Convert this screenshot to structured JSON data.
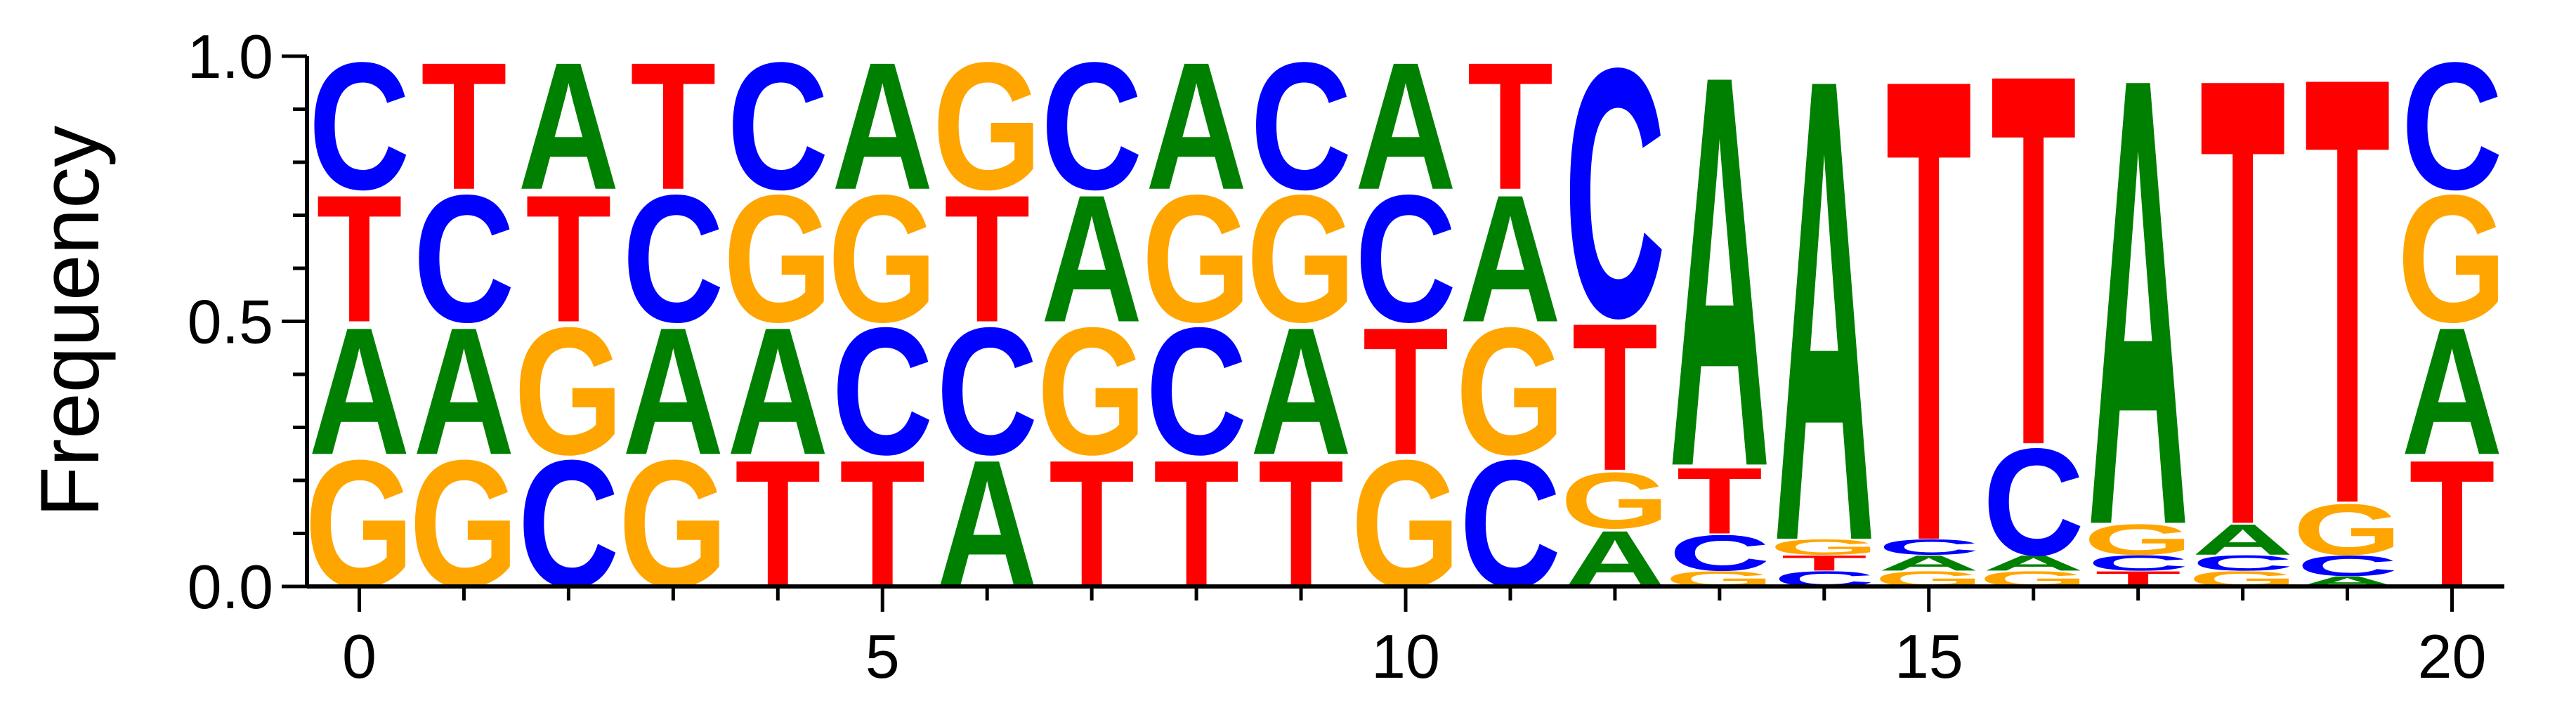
{
  "chart_data": {
    "type": "sequence-logo",
    "ylabel": "Frequency",
    "xlabel": "",
    "xlim": [
      -0.5,
      20.5
    ],
    "ylim": [
      0,
      1
    ],
    "x_ticks": [
      0,
      5,
      10,
      15,
      20
    ],
    "y_ticks": [
      "0.0",
      "0.5",
      "1.0"
    ],
    "colors": {
      "A": "#008000",
      "C": "#0000ff",
      "G": "#ffa500",
      "T": "#ff0000"
    },
    "positions": [
      {
        "pos": 0,
        "stack": [
          {
            "base": "G",
            "freq": 0.25
          },
          {
            "base": "A",
            "freq": 0.25
          },
          {
            "base": "T",
            "freq": 0.25
          },
          {
            "base": "C",
            "freq": 0.25
          }
        ]
      },
      {
        "pos": 1,
        "stack": [
          {
            "base": "G",
            "freq": 0.25
          },
          {
            "base": "A",
            "freq": 0.25
          },
          {
            "base": "C",
            "freq": 0.25
          },
          {
            "base": "T",
            "freq": 0.25
          }
        ]
      },
      {
        "pos": 2,
        "stack": [
          {
            "base": "C",
            "freq": 0.25
          },
          {
            "base": "G",
            "freq": 0.25
          },
          {
            "base": "T",
            "freq": 0.25
          },
          {
            "base": "A",
            "freq": 0.25
          }
        ]
      },
      {
        "pos": 3,
        "stack": [
          {
            "base": "G",
            "freq": 0.25
          },
          {
            "base": "A",
            "freq": 0.25
          },
          {
            "base": "C",
            "freq": 0.25
          },
          {
            "base": "T",
            "freq": 0.25
          }
        ]
      },
      {
        "pos": 4,
        "stack": [
          {
            "base": "T",
            "freq": 0.25
          },
          {
            "base": "A",
            "freq": 0.25
          },
          {
            "base": "G",
            "freq": 0.25
          },
          {
            "base": "C",
            "freq": 0.25
          }
        ]
      },
      {
        "pos": 5,
        "stack": [
          {
            "base": "T",
            "freq": 0.25
          },
          {
            "base": "C",
            "freq": 0.25
          },
          {
            "base": "G",
            "freq": 0.25
          },
          {
            "base": "A",
            "freq": 0.25
          }
        ]
      },
      {
        "pos": 6,
        "stack": [
          {
            "base": "A",
            "freq": 0.25
          },
          {
            "base": "C",
            "freq": 0.25
          },
          {
            "base": "T",
            "freq": 0.25
          },
          {
            "base": "G",
            "freq": 0.25
          }
        ]
      },
      {
        "pos": 7,
        "stack": [
          {
            "base": "T",
            "freq": 0.25
          },
          {
            "base": "G",
            "freq": 0.25
          },
          {
            "base": "A",
            "freq": 0.25
          },
          {
            "base": "C",
            "freq": 0.25
          }
        ]
      },
      {
        "pos": 8,
        "stack": [
          {
            "base": "T",
            "freq": 0.25
          },
          {
            "base": "C",
            "freq": 0.25
          },
          {
            "base": "G",
            "freq": 0.25
          },
          {
            "base": "A",
            "freq": 0.25
          }
        ]
      },
      {
        "pos": 9,
        "stack": [
          {
            "base": "T",
            "freq": 0.25
          },
          {
            "base": "A",
            "freq": 0.25
          },
          {
            "base": "G",
            "freq": 0.25
          },
          {
            "base": "C",
            "freq": 0.25
          }
        ]
      },
      {
        "pos": 10,
        "stack": [
          {
            "base": "G",
            "freq": 0.25
          },
          {
            "base": "T",
            "freq": 0.25
          },
          {
            "base": "C",
            "freq": 0.25
          },
          {
            "base": "A",
            "freq": 0.25
          }
        ]
      },
      {
        "pos": 11,
        "stack": [
          {
            "base": "C",
            "freq": 0.25
          },
          {
            "base": "G",
            "freq": 0.25
          },
          {
            "base": "A",
            "freq": 0.25
          },
          {
            "base": "T",
            "freq": 0.25
          }
        ]
      },
      {
        "pos": 12,
        "stack": [
          {
            "base": "A",
            "freq": 0.11
          },
          {
            "base": "G",
            "freq": 0.11
          },
          {
            "base": "T",
            "freq": 0.29
          },
          {
            "base": "C",
            "freq": 0.49
          }
        ]
      },
      {
        "pos": 13,
        "stack": [
          {
            "base": "G",
            "freq": 0.03
          },
          {
            "base": "C",
            "freq": 0.07
          },
          {
            "base": "T",
            "freq": 0.13
          },
          {
            "base": "A",
            "freq": 0.77
          }
        ]
      },
      {
        "pos": 14,
        "stack": [
          {
            "base": "C",
            "freq": 0.03
          },
          {
            "base": "T",
            "freq": 0.03
          },
          {
            "base": "G",
            "freq": 0.03
          },
          {
            "base": "A",
            "freq": 0.91
          }
        ]
      },
      {
        "pos": 15,
        "stack": [
          {
            "base": "G",
            "freq": 0.03
          },
          {
            "base": "A",
            "freq": 0.03
          },
          {
            "base": "C",
            "freq": 0.03
          },
          {
            "base": "T",
            "freq": 0.91
          }
        ]
      },
      {
        "pos": 16,
        "stack": [
          {
            "base": "G",
            "freq": 0.03
          },
          {
            "base": "A",
            "freq": 0.03
          },
          {
            "base": "C",
            "freq": 0.21
          },
          {
            "base": "T",
            "freq": 0.73
          }
        ]
      },
      {
        "pos": 17,
        "stack": [
          {
            "base": "T",
            "freq": 0.03
          },
          {
            "base": "C",
            "freq": 0.03
          },
          {
            "base": "G",
            "freq": 0.06
          },
          {
            "base": "A",
            "freq": 0.88
          }
        ]
      },
      {
        "pos": 18,
        "stack": [
          {
            "base": "G",
            "freq": 0.03
          },
          {
            "base": "C",
            "freq": 0.03
          },
          {
            "base": "A",
            "freq": 0.06
          },
          {
            "base": "T",
            "freq": 0.88
          }
        ]
      },
      {
        "pos": 19,
        "stack": [
          {
            "base": "A",
            "freq": 0.02
          },
          {
            "base": "C",
            "freq": 0.04
          },
          {
            "base": "G",
            "freq": 0.1
          },
          {
            "base": "T",
            "freq": 0.84
          }
        ]
      },
      {
        "pos": 20,
        "stack": [
          {
            "base": "T",
            "freq": 0.25
          },
          {
            "base": "A",
            "freq": 0.25
          },
          {
            "base": "G",
            "freq": 0.25
          },
          {
            "base": "C",
            "freq": 0.25
          }
        ]
      }
    ]
  }
}
